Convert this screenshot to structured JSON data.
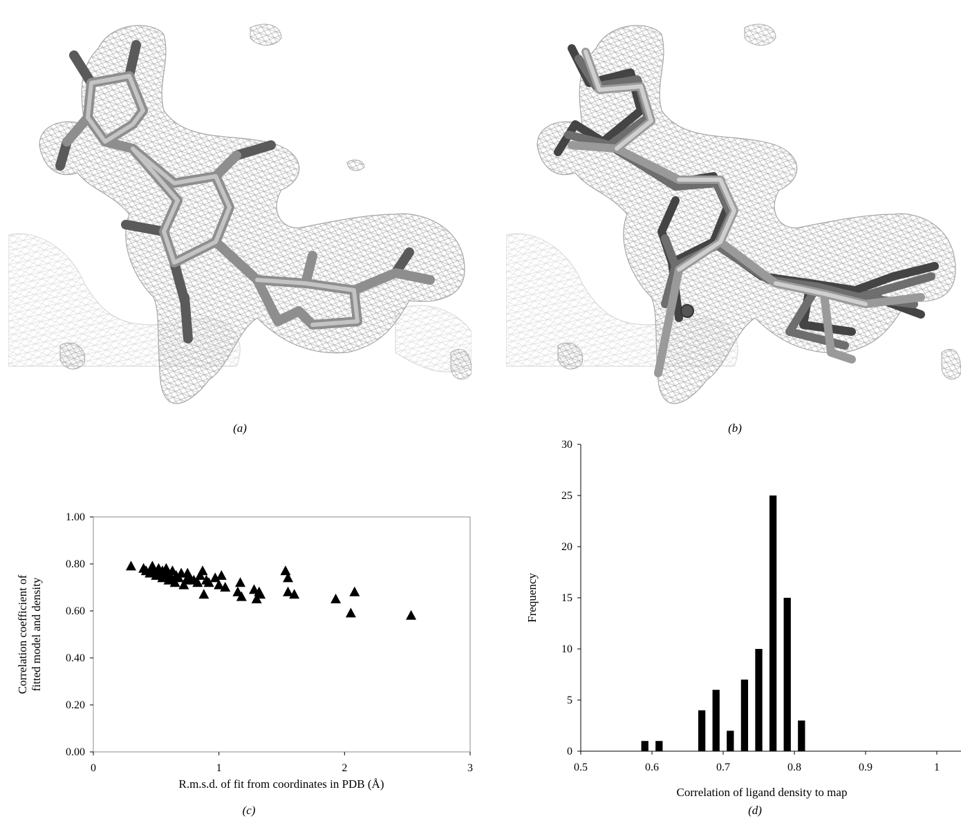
{
  "panels": {
    "a": {
      "caption": "(a)"
    },
    "b": {
      "caption": "(b)"
    },
    "c": {
      "caption": "(c)"
    },
    "d": {
      "caption": "(d)"
    }
  },
  "chart_data": [
    {
      "panel": "c",
      "type": "scatter",
      "xlabel": "R.m.s.d. of fit from coordinates in PDB (Å)",
      "ylabel_lines": [
        "Correlation coefficient of",
        "fitted model and density"
      ],
      "xlim": [
        0,
        3
      ],
      "ylim": [
        0,
        1
      ],
      "xticks": [
        0,
        1,
        2,
        3
      ],
      "xtick_labels": [
        "0",
        "1",
        "2",
        "3"
      ],
      "yticks": [
        0,
        0.2,
        0.4,
        0.6,
        0.8,
        1.0
      ],
      "ytick_labels": [
        "0.00",
        "0.20",
        "0.40",
        "0.60",
        "0.80",
        "1.00"
      ],
      "marker": "triangle",
      "grid": false,
      "points": [
        [
          0.3,
          0.79
        ],
        [
          0.4,
          0.78
        ],
        [
          0.42,
          0.77
        ],
        [
          0.45,
          0.76
        ],
        [
          0.47,
          0.79
        ],
        [
          0.48,
          0.77
        ],
        [
          0.5,
          0.75
        ],
        [
          0.52,
          0.78
        ],
        [
          0.53,
          0.76
        ],
        [
          0.55,
          0.77
        ],
        [
          0.55,
          0.74
        ],
        [
          0.57,
          0.75
        ],
        [
          0.58,
          0.78
        ],
        [
          0.6,
          0.76
        ],
        [
          0.6,
          0.73
        ],
        [
          0.62,
          0.74
        ],
        [
          0.63,
          0.77
        ],
        [
          0.65,
          0.72
        ],
        [
          0.66,
          0.75
        ],
        [
          0.68,
          0.74
        ],
        [
          0.7,
          0.76
        ],
        [
          0.72,
          0.71
        ],
        [
          0.74,
          0.73
        ],
        [
          0.75,
          0.76
        ],
        [
          0.77,
          0.74
        ],
        [
          0.8,
          0.73
        ],
        [
          0.83,
          0.72
        ],
        [
          0.85,
          0.75
        ],
        [
          0.87,
          0.77
        ],
        [
          0.88,
          0.67
        ],
        [
          0.9,
          0.73
        ],
        [
          0.92,
          0.72
        ],
        [
          0.97,
          0.74
        ],
        [
          1.0,
          0.71
        ],
        [
          1.02,
          0.75
        ],
        [
          1.05,
          0.7
        ],
        [
          1.15,
          0.68
        ],
        [
          1.17,
          0.72
        ],
        [
          1.18,
          0.66
        ],
        [
          1.28,
          0.69
        ],
        [
          1.3,
          0.65
        ],
        [
          1.32,
          0.68
        ],
        [
          1.33,
          0.67
        ],
        [
          1.53,
          0.77
        ],
        [
          1.55,
          0.74
        ],
        [
          1.55,
          0.68
        ],
        [
          1.6,
          0.67
        ],
        [
          1.93,
          0.65
        ],
        [
          2.05,
          0.59
        ],
        [
          2.08,
          0.68
        ],
        [
          2.53,
          0.58
        ]
      ]
    },
    {
      "panel": "d",
      "type": "bar",
      "xlabel": "Correlation of ligand density to map",
      "ylabel": "Frequency",
      "xlim": [
        0.5,
        1.0
      ],
      "ylim": [
        0,
        30
      ],
      "xticks": [
        0.5,
        0.6,
        0.7,
        0.8,
        0.9,
        1.0
      ],
      "xtick_labels": [
        "0.5",
        "0.6",
        "0.7",
        "0.8",
        "0.9",
        "1"
      ],
      "yticks": [
        0,
        5,
        10,
        15,
        20,
        25,
        30
      ],
      "ytick_labels": [
        "0",
        "5",
        "10",
        "15",
        "20",
        "25",
        "30"
      ],
      "bar_width": 0.01,
      "grid": false,
      "bars": [
        {
          "x": 0.59,
          "value": 1
        },
        {
          "x": 0.61,
          "value": 1
        },
        {
          "x": 0.67,
          "value": 4
        },
        {
          "x": 0.69,
          "value": 6
        },
        {
          "x": 0.71,
          "value": 2
        },
        {
          "x": 0.73,
          "value": 7
        },
        {
          "x": 0.75,
          "value": 10
        },
        {
          "x": 0.77,
          "value": 25
        },
        {
          "x": 0.79,
          "value": 15
        },
        {
          "x": 0.81,
          "value": 3
        }
      ]
    }
  ]
}
